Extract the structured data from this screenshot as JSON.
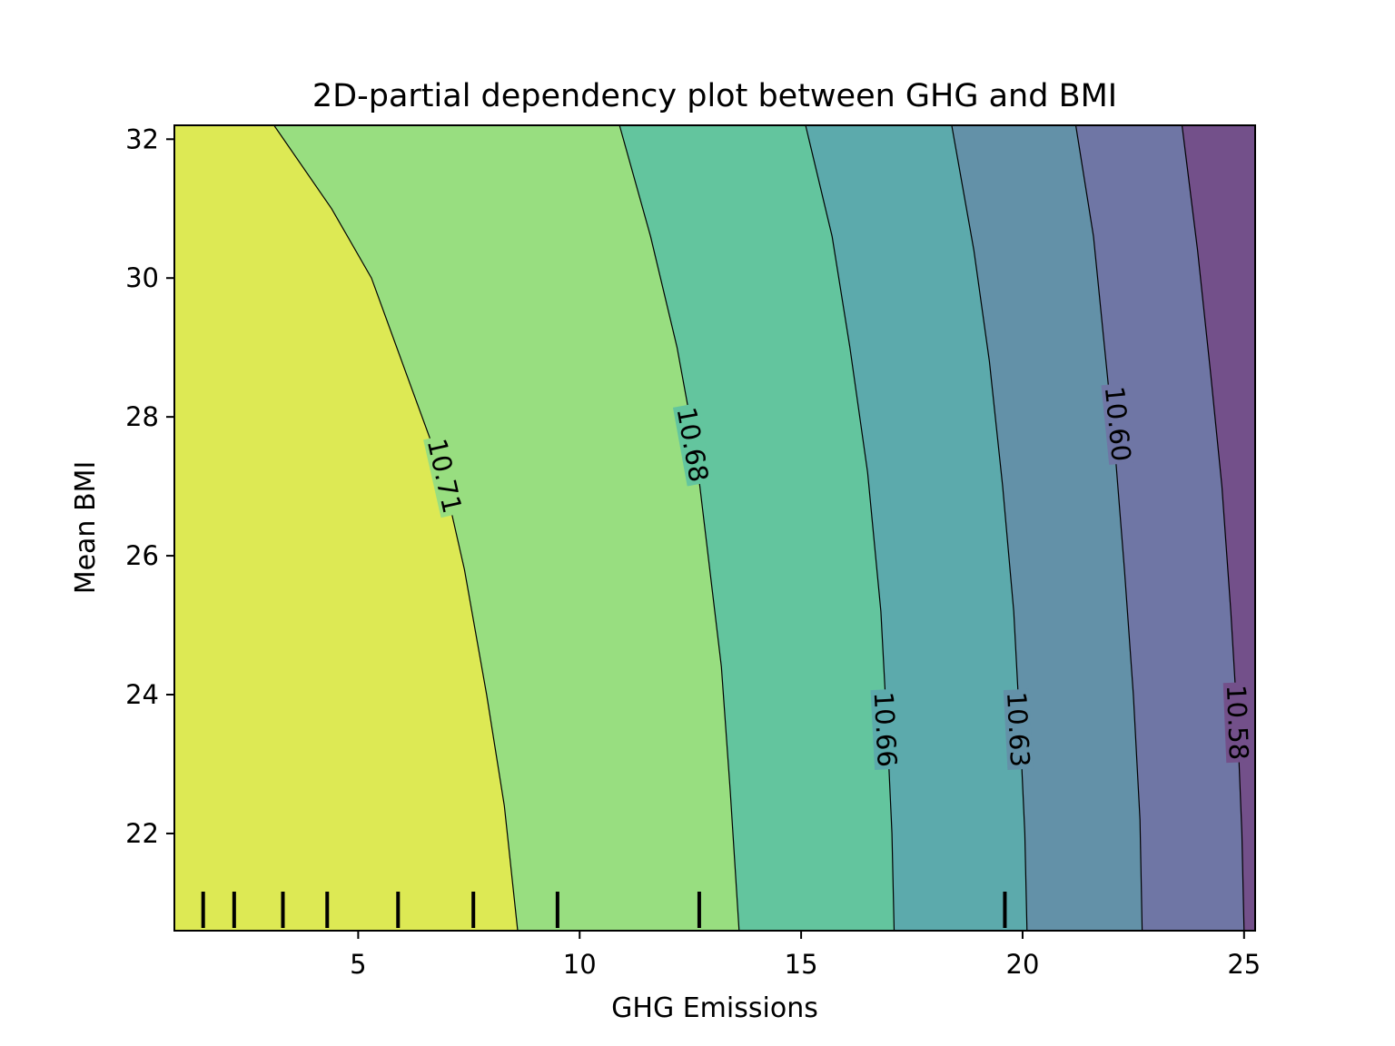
{
  "chart_data": {
    "type": "contour",
    "title": "2D-partial dependency plot between GHG and BMI",
    "xlabel": "GHG Emissions",
    "ylabel": "Mean BMI",
    "xlim": [
      0.85,
      25.25
    ],
    "ylim": [
      20.6,
      32.2
    ],
    "xticks": [
      5,
      10,
      15,
      20,
      25
    ],
    "yticks": [
      22,
      24,
      26,
      28,
      30,
      32
    ],
    "grid": false,
    "colormap": "viridis",
    "region_colors": [
      "#DDE954",
      "#98DE80",
      "#63C59E",
      "#5CAAAC",
      "#6391A8",
      "#6F76A5",
      "#73508A"
    ],
    "contour_levels": [
      {
        "label": "10.71",
        "points": [
          [
            3.1,
            32.2
          ],
          [
            4.4,
            31.0
          ],
          [
            5.3,
            30.0
          ],
          [
            6.1,
            28.6
          ],
          [
            6.9,
            27.2
          ],
          [
            7.4,
            25.8
          ],
          [
            7.9,
            24.0
          ],
          [
            8.3,
            22.4
          ],
          [
            8.6,
            20.6
          ]
        ],
        "label_at": [
          6.95,
          27.15
        ]
      },
      {
        "label": "10.68",
        "points": [
          [
            10.9,
            32.2
          ],
          [
            11.6,
            30.6
          ],
          [
            12.2,
            29.0
          ],
          [
            12.6,
            27.6
          ],
          [
            12.9,
            26.0
          ],
          [
            13.2,
            24.4
          ],
          [
            13.4,
            22.6
          ],
          [
            13.6,
            20.6
          ]
        ],
        "label_at": [
          12.55,
          27.6
        ]
      },
      {
        "label": "10.66",
        "points": [
          [
            15.1,
            32.2
          ],
          [
            15.7,
            30.6
          ],
          [
            16.1,
            29.0
          ],
          [
            16.5,
            27.2
          ],
          [
            16.8,
            25.2
          ],
          [
            16.95,
            23.4
          ],
          [
            17.05,
            22.0
          ],
          [
            17.1,
            20.6
          ]
        ],
        "label_at": [
          16.9,
          23.5
        ]
      },
      {
        "label": "10.63",
        "points": [
          [
            18.4,
            32.2
          ],
          [
            18.9,
            30.4
          ],
          [
            19.25,
            28.8
          ],
          [
            19.55,
            27.0
          ],
          [
            19.8,
            25.2
          ],
          [
            19.95,
            23.4
          ],
          [
            20.05,
            22.0
          ],
          [
            20.1,
            20.6
          ]
        ],
        "label_at": [
          19.9,
          23.5
        ]
      },
      {
        "label": "10.60",
        "points": [
          [
            21.2,
            32.2
          ],
          [
            21.6,
            30.6
          ],
          [
            21.85,
            29.0
          ],
          [
            22.1,
            27.4
          ],
          [
            22.3,
            25.8
          ],
          [
            22.5,
            24.0
          ],
          [
            22.65,
            22.2
          ],
          [
            22.7,
            20.6
          ]
        ],
        "label_at": [
          22.15,
          27.9
        ]
      },
      {
        "label": "10.58",
        "points": [
          [
            23.6,
            32.2
          ],
          [
            23.95,
            30.4
          ],
          [
            24.25,
            28.6
          ],
          [
            24.5,
            27.0
          ],
          [
            24.7,
            25.2
          ],
          [
            24.85,
            23.6
          ],
          [
            24.95,
            22.0
          ],
          [
            25.0,
            20.6
          ]
        ],
        "label_at": [
          24.85,
          23.6
        ]
      }
    ],
    "rug_x": [
      1.5,
      2.2,
      3.3,
      4.3,
      5.9,
      7.6,
      9.5,
      12.7,
      19.6
    ]
  }
}
